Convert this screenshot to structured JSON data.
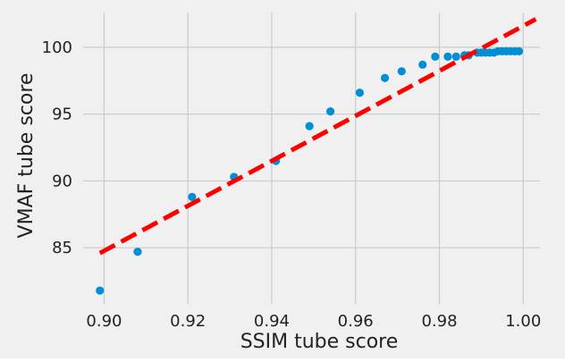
{
  "chart_data": {
    "type": "scatter",
    "xlabel": "SSIM tube score",
    "ylabel": "VMAF tube score",
    "xlim": [
      0.895,
      1.004
    ],
    "ylim": [
      80.8,
      102.6
    ],
    "xticks": [
      0.9,
      0.92,
      0.94,
      0.96,
      0.98,
      1.0
    ],
    "xtick_labels": [
      "0.90",
      "0.92",
      "0.94",
      "0.96",
      "0.98",
      "1.00"
    ],
    "yticks": [
      85,
      90,
      95,
      100
    ],
    "ytick_labels": [
      "85",
      "90",
      "95",
      "100"
    ],
    "grid": true,
    "legend": "none",
    "series": [
      {
        "kind": "points",
        "color": "#008fd5",
        "points": [
          [
            0.899,
            81.8
          ],
          [
            0.908,
            84.7
          ],
          [
            0.921,
            88.8
          ],
          [
            0.931,
            90.3
          ],
          [
            0.941,
            91.5
          ],
          [
            0.949,
            94.1
          ],
          [
            0.954,
            95.2
          ],
          [
            0.961,
            96.6
          ],
          [
            0.967,
            97.7
          ],
          [
            0.971,
            98.2
          ],
          [
            0.976,
            98.7
          ],
          [
            0.979,
            99.3
          ],
          [
            0.982,
            99.3
          ],
          [
            0.984,
            99.3
          ],
          [
            0.986,
            99.4
          ],
          [
            0.987,
            99.4
          ],
          [
            0.989,
            99.6
          ],
          [
            0.99,
            99.6
          ],
          [
            0.991,
            99.6
          ],
          [
            0.992,
            99.6
          ],
          [
            0.993,
            99.6
          ],
          [
            0.994,
            99.7
          ],
          [
            0.995,
            99.7
          ],
          [
            0.996,
            99.7
          ],
          [
            0.997,
            99.7
          ],
          [
            0.998,
            99.7
          ],
          [
            0.999,
            99.7
          ]
        ]
      },
      {
        "kind": "dashed-line",
        "color": "#ff0000",
        "points": [
          [
            0.899,
            84.6
          ],
          [
            1.003,
            102.1
          ]
        ]
      }
    ]
  }
}
